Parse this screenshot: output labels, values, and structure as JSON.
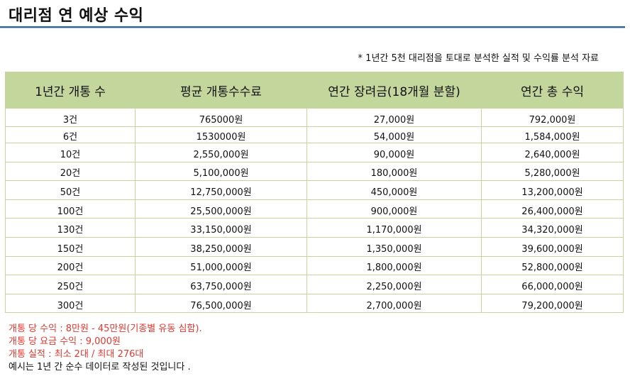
{
  "title": "대리점 연 예상 수익",
  "note": "* 1년간 5천 대리점을 토대로 분석한 실적 및 수익률 분석 자료",
  "table": {
    "headers": [
      "1년간 개통 수",
      "평균 개통수수료",
      "연간 장려금(18개월 분할)",
      "연간 총 수익"
    ],
    "rows": [
      [
        "3건",
        "765000원",
        "27,000원",
        "792,000원"
      ],
      [
        "6건",
        "1530000원",
        "54,000원",
        "1,584,000원"
      ],
      [
        "10건",
        "2,550,000원",
        "90,000원",
        "2,640,000원"
      ],
      [
        "20건",
        "5,100,000원",
        "180,000원",
        "5,280,000원"
      ],
      [
        "50건",
        "12,750,000원",
        "450,000원",
        "13,200,000원"
      ],
      [
        "100건",
        "25,500,000원",
        "900,000원",
        "26,400,000원"
      ],
      [
        "130건",
        "33,150,000원",
        "1,170,000원",
        "34,320,000원"
      ],
      [
        "150건",
        "38,250,000원",
        "1,350,000원",
        "39,600,000원"
      ],
      [
        "200건",
        "51,000,000원",
        "1,800,000원",
        "52,800,000원"
      ],
      [
        "250건",
        "63,750,000원",
        "2,250,000원",
        "66,000,000원"
      ],
      [
        "300건",
        "76,500,000원",
        "2,700,000원",
        "79,200,000원"
      ]
    ]
  },
  "footer": {
    "lines": [
      "개통 당 수익 : 8만원 - 45만원(기종별 유동 심함).",
      "개통 당 요금 수익 : 9,000원",
      "개통 실적 : 최소 2대 / 최대 276대",
      "예시는 1년 간 순수 데이터로 작성된 것입니다 ."
    ]
  },
  "colors": {
    "header_bg": "#c3d69b",
    "rule": "#2e64a6",
    "footer_red": "#e8362d"
  }
}
